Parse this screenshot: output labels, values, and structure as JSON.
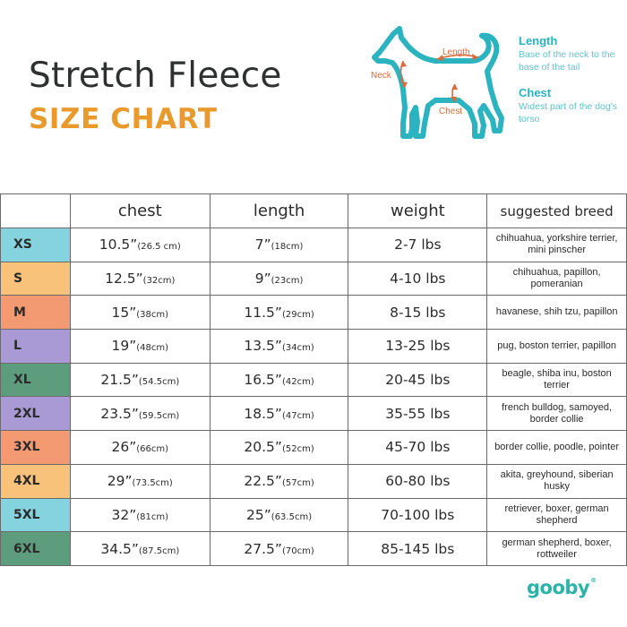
{
  "header": {
    "title": "Stretch Fleece",
    "subtitle": "SIZE CHART"
  },
  "diagram": {
    "labels": {
      "neck": "Neck",
      "length": "Length",
      "chest": "Chest"
    },
    "colors": {
      "outline": "#2bb3c0",
      "arrows": "#d96b3e"
    }
  },
  "legend": {
    "length": {
      "title": "Length",
      "description": "Base of the neck to the base of the tail"
    },
    "chest": {
      "title": "Chest",
      "description": "Widest part of the dog's torso"
    }
  },
  "table": {
    "headers": [
      "chest",
      "length",
      "weight",
      "suggested breed"
    ],
    "rows": [
      {
        "size": "XS",
        "color": "#85d3df",
        "chest": "10.5”",
        "chest_cm": "(26.5 cm)",
        "length": "7”",
        "length_cm": "(18cm)",
        "weight": "2-7 lbs",
        "breed": "chihuahua, yorkshire terrier, mini pinscher"
      },
      {
        "size": "S",
        "color": "#f8c27a",
        "chest": "12.5”",
        "chest_cm": "(32cm)",
        "length": "9”",
        "length_cm": "(23cm)",
        "weight": "4-10 lbs",
        "breed": "chihuahua, papillon, pomeranian"
      },
      {
        "size": "M",
        "color": "#f39a73",
        "chest": "15”",
        "chest_cm": "(38cm)",
        "length": "11.5”",
        "length_cm": "(29cm)",
        "weight": "8-15 lbs",
        "breed": "havanese, shih tzu, papillon"
      },
      {
        "size": "L",
        "color": "#a99ad6",
        "chest": "19”",
        "chest_cm": "(48cm)",
        "length": "13.5”",
        "length_cm": "(34cm)",
        "weight": "13-25 lbs",
        "breed": "pug, boston terrier, papillon"
      },
      {
        "size": "XL",
        "color": "#5e9c7e",
        "chest": "21.5”",
        "chest_cm": "(54.5cm)",
        "length": "16.5”",
        "length_cm": "(42cm)",
        "weight": "20-45 lbs",
        "breed": "beagle, shiba inu, boston terrier"
      },
      {
        "size": "2XL",
        "color": "#a99ad6",
        "chest": "23.5”",
        "chest_cm": "(59.5cm)",
        "length": "18.5”",
        "length_cm": "(47cm)",
        "weight": "35-55 lbs",
        "breed": "french bulldog, samoyed, border collie"
      },
      {
        "size": "3XL",
        "color": "#f39a73",
        "chest": "26”",
        "chest_cm": "(66cm)",
        "length": "20.5”",
        "length_cm": "(52cm)",
        "weight": "45-70 lbs",
        "breed": "border collie, poodle, pointer"
      },
      {
        "size": "4XL",
        "color": "#f8c27a",
        "chest": "29”",
        "chest_cm": "(73.5cm)",
        "length": "22.5”",
        "length_cm": "(57cm)",
        "weight": "60-80 lbs",
        "breed": "akita, greyhound, siberian husky"
      },
      {
        "size": "5XL",
        "color": "#85d3df",
        "chest": "32”",
        "chest_cm": "(81cm)",
        "length": "25”",
        "length_cm": "(63.5cm)",
        "weight": "70-100 lbs",
        "breed": "retriever, boxer, german shepherd"
      },
      {
        "size": "6XL",
        "color": "#5e9c7e",
        "chest": "34.5”",
        "chest_cm": "(87.5cm)",
        "length": "27.5”",
        "length_cm": "(70cm)",
        "weight": "85-145 lbs",
        "breed": "german shepherd, boxer, rottweiler"
      }
    ]
  },
  "brand": {
    "logo": "gooby",
    "trademark": "®",
    "color": "#2bb3a8"
  }
}
